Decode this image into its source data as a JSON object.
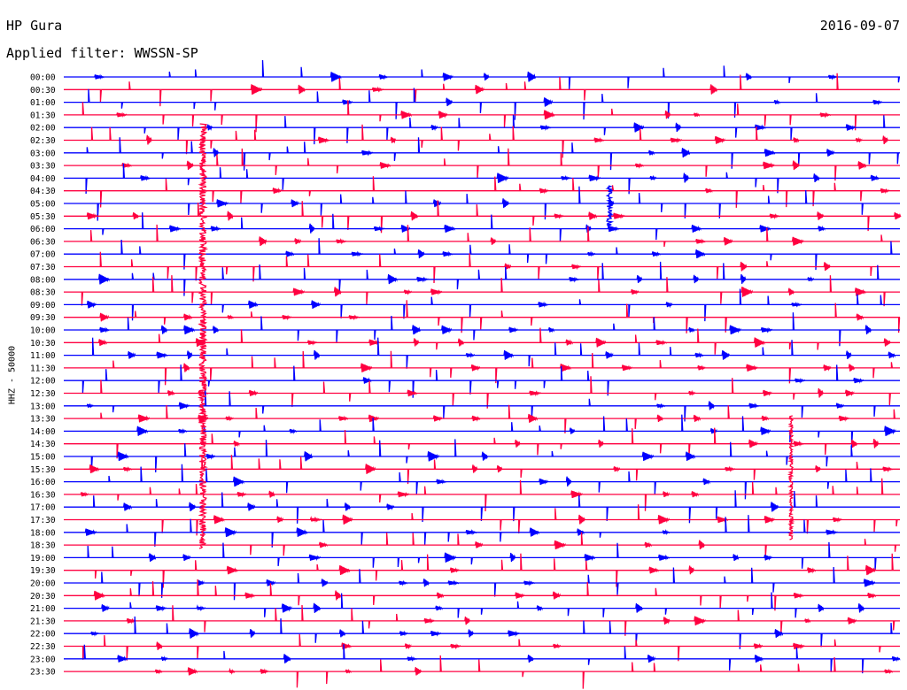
{
  "header": {
    "station": "HP Gura",
    "date": "2016-09-07",
    "filter": "Applied filter: WWSSN-SP"
  },
  "chart_data": {
    "type": "line",
    "title": "HP Gura",
    "ylabel": "HHZ - 50000",
    "colors": [
      "#0000ff",
      "#ff0040"
    ],
    "rows": [
      "00:00",
      "00:30",
      "01:00",
      "01:30",
      "02:00",
      "02:30",
      "03:00",
      "03:30",
      "04:00",
      "04:30",
      "05:00",
      "05:30",
      "06:00",
      "06:30",
      "07:00",
      "07:30",
      "08:00",
      "08:30",
      "09:00",
      "09:30",
      "10:00",
      "10:30",
      "11:00",
      "11:30",
      "12:00",
      "12:30",
      "13:00",
      "13:30",
      "14:00",
      "14:30",
      "15:00",
      "15:30",
      "16:00",
      "16:30",
      "17:00",
      "17:30",
      "18:00",
      "18:30",
      "19:00",
      "19:30",
      "20:00",
      "20:30",
      "21:00",
      "21:30",
      "22:00",
      "22:30",
      "23:00",
      "23:30"
    ]
  }
}
